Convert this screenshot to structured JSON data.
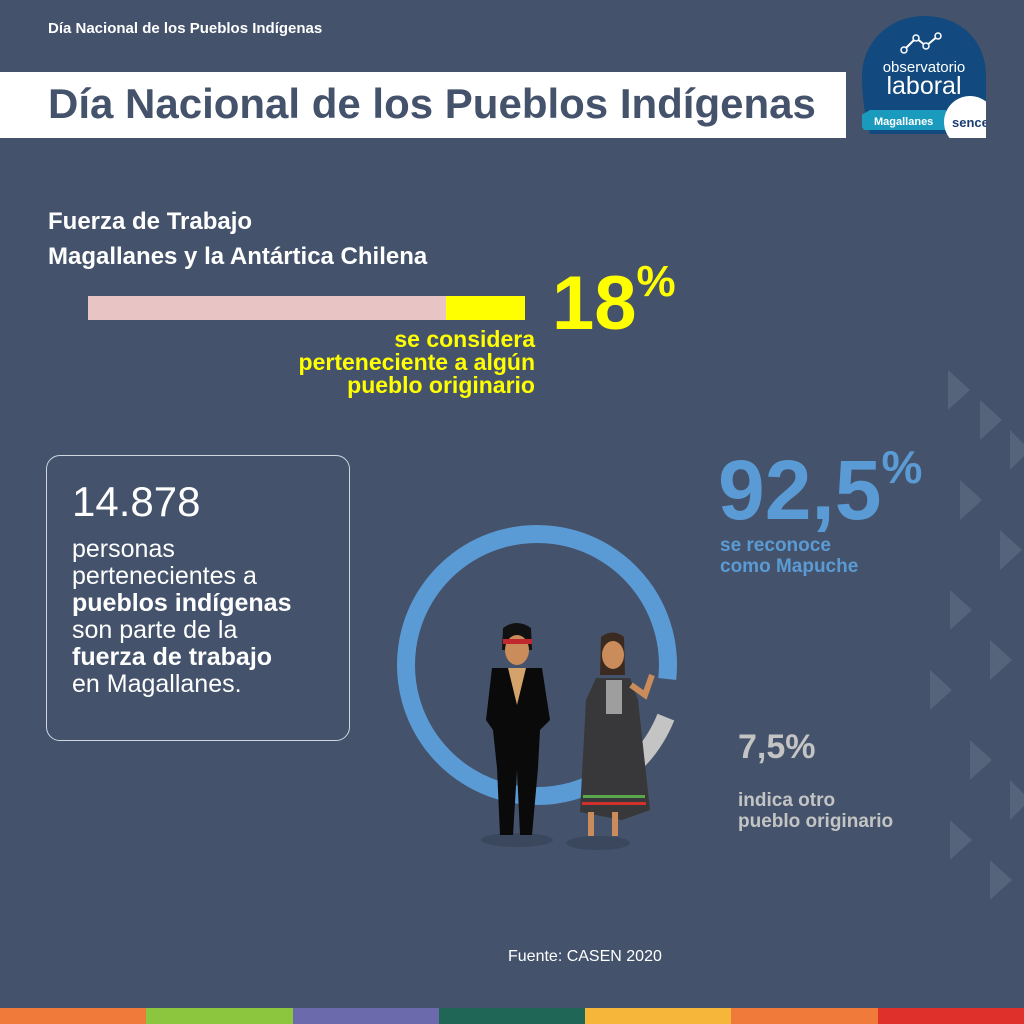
{
  "header": {
    "top_label": "Día Nacional de los Pueblos Indígenas",
    "title": "Día Nacional de los Pueblos Indígenas"
  },
  "logo": {
    "line1": "observatorio",
    "line2": "laboral",
    "region": "Magallanes",
    "brand": "sence"
  },
  "section": {
    "line1": "Fuerza de Trabajo",
    "line2": "Magallanes y la Antártica Chilena"
  },
  "bar_stat": {
    "value": "18",
    "unit": "%",
    "fraction": 0.18,
    "text": [
      "se considera",
      "perteneciente a algún",
      "pueblo originario"
    ]
  },
  "box": {
    "number": "14.878",
    "t1": "personas",
    "t2": "pertenecientes a",
    "t3": "pueblos indígenas",
    "t4": "son parte de la",
    "t5": "fuerza de trabajo",
    "t6": "en Magallanes."
  },
  "donut": {
    "mapuche_value": "92,5",
    "unit": "%",
    "mapuche_fraction": 0.925,
    "mapuche_text": [
      "se reconoce",
      "como Mapuche"
    ],
    "other_value": "7,5%",
    "other_fraction": 0.075,
    "other_text": [
      "indica otro",
      "pueblo originario"
    ]
  },
  "source": "Fuente: CASEN 2020",
  "colors": {
    "bg": "#44536b",
    "yellow": "#ffff00",
    "blue": "#5b9bd5",
    "gray": "#c4c4c4",
    "stripe": [
      "#f07a3a",
      "#8cc63f",
      "#6a6aad",
      "#1f6657",
      "#f5b63a",
      "#f07a3a",
      "#e0302c"
    ]
  }
}
